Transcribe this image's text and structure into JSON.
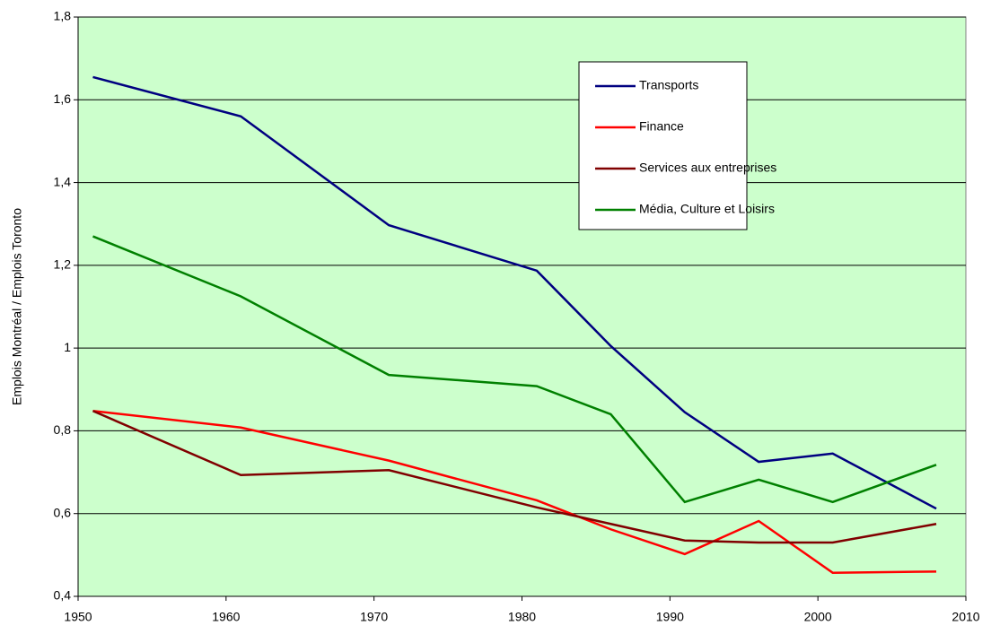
{
  "chart_data": {
    "type": "line",
    "ylabel": "Emplois Montréal / Emplois Toronto",
    "x": [
      1951,
      1961,
      1971,
      1981,
      1986,
      1991,
      1996,
      2001,
      2008
    ],
    "series": [
      {
        "name": "Transports",
        "color": "#000080",
        "values": [
          1.655,
          1.56,
          1.297,
          1.187,
          1.005,
          0.845,
          0.725,
          0.745,
          0.612
        ]
      },
      {
        "name": "Finance",
        "color": "#ff0000",
        "values": [
          0.848,
          0.808,
          0.728,
          0.632,
          0.562,
          0.502,
          0.582,
          0.457,
          0.46
        ]
      },
      {
        "name": "Services aux entreprises",
        "color": "#800000",
        "values": [
          0.848,
          0.693,
          0.705,
          0.615,
          0.575,
          0.535,
          0.53,
          0.53,
          0.575
        ]
      },
      {
        "name": "Média, Culture et Loisirs",
        "color": "#008000",
        "values": [
          1.27,
          1.125,
          0.935,
          0.908,
          0.84,
          0.628,
          0.682,
          0.628,
          0.718
        ]
      }
    ],
    "xlim": [
      1950,
      2010
    ],
    "xticks": [
      1950,
      1960,
      1970,
      1980,
      1990,
      2000,
      2010
    ],
    "ylim": [
      0.4,
      1.8
    ],
    "yticks": [
      {
        "value": 0.4,
        "label": "0,4"
      },
      {
        "value": 0.6,
        "label": "0,6"
      },
      {
        "value": 0.8,
        "label": "0,8"
      },
      1,
      {
        "value": 1.2,
        "label": "1,2"
      },
      {
        "value": 1.4,
        "label": "1,4"
      },
      {
        "value": 1.6,
        "label": "1,6"
      },
      {
        "value": 1.8,
        "label": "1,8"
      }
    ],
    "grid": true,
    "background": "#ccffcc"
  }
}
